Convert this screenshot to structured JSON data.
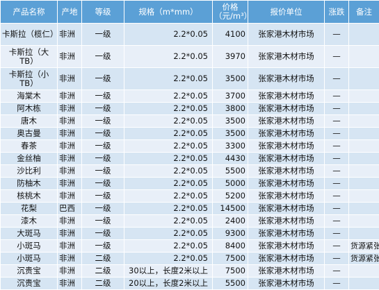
{
  "table": {
    "headers": {
      "name": "产品名称",
      "origin": "产地",
      "grade": "等级",
      "spec": "规格（m*mm）",
      "price": "价格（元/m³）",
      "unit": "报价单位",
      "change": "涨跌",
      "note": "备注"
    },
    "rows": [
      {
        "name": "卡斯拉（榄仁）",
        "origin": "非洲",
        "grade": "一级",
        "spec": "2.2*0.05",
        "price": "4100",
        "unit": "张家港木材市场",
        "change": "—",
        "note": ""
      },
      {
        "name": "卡斯拉（大TB）",
        "origin": "非洲",
        "grade": "一级",
        "spec": "2.2*0.05",
        "price": "3970",
        "unit": "张家港木材市场",
        "change": "—",
        "note": ""
      },
      {
        "name": "卡斯拉（小TB）",
        "origin": "非洲",
        "grade": "一级",
        "spec": "2.2*0.05",
        "price": "3500",
        "unit": "张家港木材市场",
        "change": "—",
        "note": ""
      },
      {
        "name": "海棠木",
        "origin": "非洲",
        "grade": "一级",
        "spec": "2.2*0.05",
        "price": "3700",
        "unit": "张家港木材市场",
        "change": "—",
        "note": ""
      },
      {
        "name": "阿木栋",
        "origin": "非洲",
        "grade": "一级",
        "spec": "2.2*0.05",
        "price": "3800",
        "unit": "张家港木材市场",
        "change": "—",
        "note": ""
      },
      {
        "name": "唐木",
        "origin": "非洲",
        "grade": "一级",
        "spec": "2.2*0.05",
        "price": "3500",
        "unit": "张家港木材市场",
        "change": "—",
        "note": ""
      },
      {
        "name": "奥古曼",
        "origin": "非洲",
        "grade": "一级",
        "spec": "2.2*0.05",
        "price": "3500",
        "unit": "张家港木材市场",
        "change": "—",
        "note": ""
      },
      {
        "name": "春茶",
        "origin": "非洲",
        "grade": "一级",
        "spec": "2.2*0.05",
        "price": "3300",
        "unit": "张家港木材市场",
        "change": "—",
        "note": ""
      },
      {
        "name": "金丝柚",
        "origin": "非洲",
        "grade": "一级",
        "spec": "2.2*0.05",
        "price": "4430",
        "unit": "张家港木材市场",
        "change": "—",
        "note": ""
      },
      {
        "name": "沙比利",
        "origin": "非洲",
        "grade": "一级",
        "spec": "2.2*0.05",
        "price": "5500",
        "unit": "张家港木材市场",
        "change": "—",
        "note": ""
      },
      {
        "name": "防柚木",
        "origin": "非洲",
        "grade": "一级",
        "spec": "2.2*0.05",
        "price": "5000",
        "unit": "张家港木材市场",
        "change": "—",
        "note": ""
      },
      {
        "name": "核桃木",
        "origin": "非洲",
        "grade": "一级",
        "spec": "2.2*0.05",
        "price": "5200",
        "unit": "张家港木材市场",
        "change": "—",
        "note": ""
      },
      {
        "name": "花梨",
        "origin": "巴西",
        "grade": "一级",
        "spec": "2.2*0.05",
        "price": "14500",
        "unit": "张家港木材市场",
        "change": "—",
        "note": ""
      },
      {
        "name": "漆木",
        "origin": "非洲",
        "grade": "一级",
        "spec": "2.2*0.05",
        "price": "2400",
        "unit": "张家港木材市场",
        "change": "—",
        "note": ""
      },
      {
        "name": "大斑马",
        "origin": "非洲",
        "grade": "一级",
        "spec": "2.2*0.05",
        "price": "9300",
        "unit": "张家港木材市场",
        "change": "—",
        "note": ""
      },
      {
        "name": "小斑马",
        "origin": "非洲",
        "grade": "一级",
        "spec": "2.2*0.05",
        "price": "8400",
        "unit": "张家港木材市场",
        "change": "—",
        "note": "货源紧张"
      },
      {
        "name": "小斑马",
        "origin": "非洲",
        "grade": "二级",
        "spec": "2.2*0.05",
        "price": "7500",
        "unit": "张家港木材市场",
        "change": "—",
        "note": "货源紧张"
      },
      {
        "name": "沉贵宝",
        "origin": "非洲",
        "grade": "二级",
        "spec": "30以上，长度2米以上",
        "price": "7500",
        "unit": "张家港木材市场",
        "change": "—",
        "note": ""
      },
      {
        "name": "沉贵宝",
        "origin": "非洲",
        "grade": "二级",
        "spec": "20以上，长度2米以上",
        "price": "5500",
        "unit": "张家港木材市场",
        "change": "—",
        "note": ""
      }
    ]
  }
}
